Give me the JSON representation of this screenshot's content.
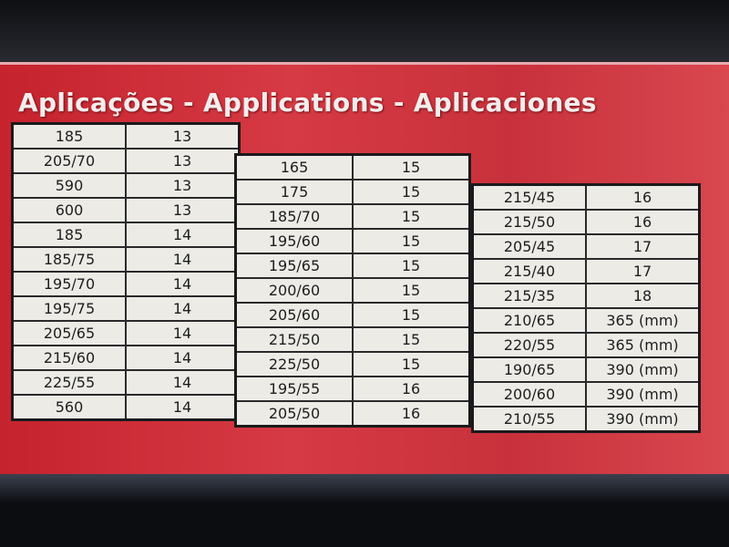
{
  "title": "Aplicações - Applications - Aplicaciones",
  "tables": [
    {
      "rows": [
        [
          "185",
          "13"
        ],
        [
          "205/70",
          "13"
        ],
        [
          "590",
          "13"
        ],
        [
          "600",
          "13"
        ],
        [
          "185",
          "14"
        ],
        [
          "185/75",
          "14"
        ],
        [
          "195/70",
          "14"
        ],
        [
          "195/75",
          "14"
        ],
        [
          "205/65",
          "14"
        ],
        [
          "215/60",
          "14"
        ],
        [
          "225/55",
          "14"
        ],
        [
          "560",
          "14"
        ]
      ]
    },
    {
      "rows": [
        [
          "165",
          "15"
        ],
        [
          "175",
          "15"
        ],
        [
          "185/70",
          "15"
        ],
        [
          "195/60",
          "15"
        ],
        [
          "195/65",
          "15"
        ],
        [
          "200/60",
          "15"
        ],
        [
          "205/60",
          "15"
        ],
        [
          "215/50",
          "15"
        ],
        [
          "225/50",
          "15"
        ],
        [
          "195/55",
          "16"
        ],
        [
          "205/50",
          "16"
        ]
      ]
    },
    {
      "rows": [
        [
          "215/45",
          "16"
        ],
        [
          "215/50",
          "16"
        ],
        [
          "205/45",
          "17"
        ],
        [
          "215/40",
          "17"
        ],
        [
          "215/35",
          "18"
        ],
        [
          "210/65",
          "365 (mm)"
        ],
        [
          "220/55",
          "365 (mm)"
        ],
        [
          "190/65",
          "390 (mm)"
        ],
        [
          "200/60",
          "390 (mm)"
        ],
        [
          "210/55",
          "390 (mm)"
        ]
      ]
    }
  ],
  "colors": {
    "label_red": "#c8283a",
    "cell_bg": "#ecebe6"
  }
}
